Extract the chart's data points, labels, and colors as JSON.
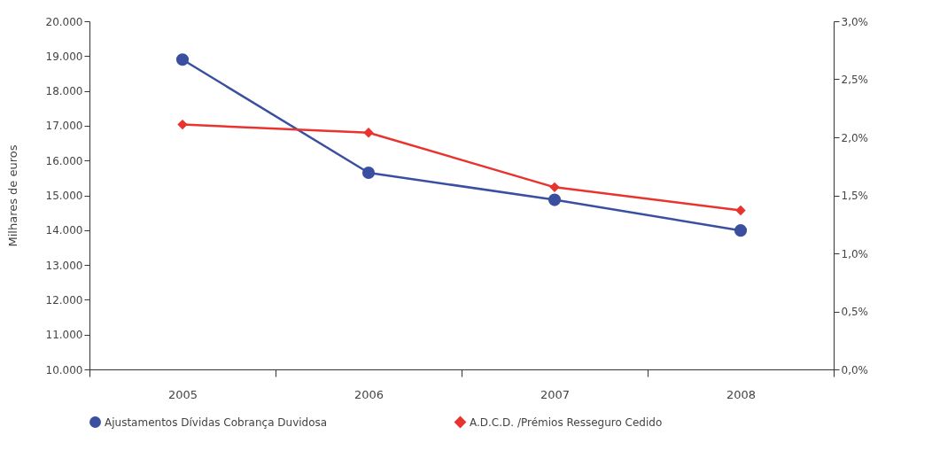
{
  "chart_data": {
    "type": "line",
    "ylabel": "Milhares de euros",
    "categories": [
      "2005",
      "2006",
      "2007",
      "2008"
    ],
    "series": [
      {
        "name": "Ajustamentos Dívidas Cobrança Duvidosa",
        "color": "#3a4fa0",
        "marker": "circle",
        "values": [
          18900,
          15650,
          14870,
          13990
        ]
      },
      {
        "name": "A.D.C.D. /Prémios Resseguro Cedido",
        "color": "#e8332e",
        "marker": "diamond",
        "axis": "y2",
        "values": [
          2.11,
          2.04,
          1.57,
          1.37
        ]
      }
    ],
    "ylim": [
      10000,
      20000
    ],
    "yticks": [
      {
        "value": 10000,
        "label": "10.000"
      },
      {
        "value": 11000,
        "label": "11.000"
      },
      {
        "value": 12000,
        "label": "12.000"
      },
      {
        "value": 13000,
        "label": "13.000"
      },
      {
        "value": 14000,
        "label": "14.000"
      },
      {
        "value": 15000,
        "label": "15.000"
      },
      {
        "value": 16000,
        "label": "16.000"
      },
      {
        "value": 17000,
        "label": "17.000"
      },
      {
        "value": 18000,
        "label": "18.000"
      },
      {
        "value": 19000,
        "label": "19.000"
      },
      {
        "value": 20000,
        "label": "20.000"
      }
    ],
    "y2lim": [
      0,
      3
    ],
    "y2ticks": [
      {
        "value": 0,
        "label": "0,0%"
      },
      {
        "value": 0.5,
        "label": "0,5%"
      },
      {
        "value": 1,
        "label": "1,0%"
      },
      {
        "value": 1.5,
        "label": "1,5%"
      },
      {
        "value": 2,
        "label": "2,0%"
      },
      {
        "value": 2.5,
        "label": "2,5%"
      },
      {
        "value": 3,
        "label": "3,0%"
      }
    ],
    "grid": false,
    "legend": "bottom",
    "line_style": "solid"
  }
}
